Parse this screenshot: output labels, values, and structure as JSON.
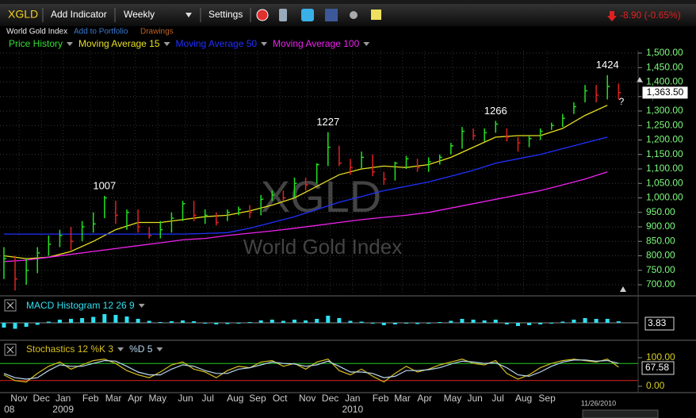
{
  "toolbar": {
    "symbol": "XGLD",
    "add_indicator": "Add Indicator",
    "interval": "Weekly",
    "settings": "Settings",
    "change": "-8.90 (-0.65%)"
  },
  "subbar": {
    "name": "World Gold Index",
    "add_to_portfolio": "Add to Portfolio",
    "drawings": "Drawings"
  },
  "chart_data": [
    {
      "type": "ohlc",
      "watermark": {
        "symbol": "XGLD",
        "name": "World Gold Index"
      },
      "xlim": [
        -0.7,
        113.5
      ],
      "ylim": [
        700,
        1500
      ],
      "yticks": [
        {
          "value": 1500,
          "label": "1,500.00"
        },
        {
          "value": 1450,
          "label": "1,450.00"
        },
        {
          "value": 1400,
          "label": "1,400.00"
        },
        {
          "value": 1350,
          "label": "1,350.00"
        },
        {
          "value": 1300,
          "label": "1,300.00"
        },
        {
          "value": 1250,
          "label": "1,250.00"
        },
        {
          "value": 1200,
          "label": "1,200.00"
        },
        {
          "value": 1150,
          "label": "1,150.00"
        },
        {
          "value": 1100,
          "label": "1,100.00"
        },
        {
          "value": 1050,
          "label": "1,050.00"
        },
        {
          "value": 1000,
          "label": "1,000.00"
        },
        {
          "value": 950,
          "label": "950.00"
        },
        {
          "value": 900,
          "label": "900.00"
        },
        {
          "value": 850,
          "label": "850.00"
        },
        {
          "value": 800,
          "label": "800.00"
        },
        {
          "value": 750,
          "label": "750.00"
        },
        {
          "value": 700,
          "label": "700.00"
        }
      ],
      "grid": true,
      "xticks": [
        {
          "value": 2.7,
          "label": "Nov"
        },
        {
          "value": 6.7,
          "label": "Dec"
        },
        {
          "value": 10.6,
          "label": "Jan"
        },
        {
          "value": 15.5,
          "label": "Feb"
        },
        {
          "value": 19.6,
          "label": "Mar"
        },
        {
          "value": 23.5,
          "label": "Apr"
        },
        {
          "value": 27.5,
          "label": "May"
        },
        {
          "value": 32.5,
          "label": "Jun"
        },
        {
          "value": 36.5,
          "label": "Jul"
        },
        {
          "value": 41.4,
          "label": "Aug"
        },
        {
          "value": 45.4,
          "label": "Sep"
        },
        {
          "value": 49.4,
          "label": "Oct"
        },
        {
          "value": 54.3,
          "label": "Nov"
        },
        {
          "value": 58.4,
          "label": "Dec"
        },
        {
          "value": 62.4,
          "label": "Jan"
        },
        {
          "value": 67.4,
          "label": "Feb"
        },
        {
          "value": 71.3,
          "label": "Mar"
        },
        {
          "value": 75.3,
          "label": "Apr"
        },
        {
          "value": 80.3,
          "label": "May"
        },
        {
          "value": 84.3,
          "label": "Jun"
        },
        {
          "value": 88.4,
          "label": "Jul"
        },
        {
          "value": 93.0,
          "label": "Aug"
        },
        {
          "value": 97.2,
          "label": "Sep"
        }
      ],
      "year_ticks": [
        {
          "value": 0.4,
          "label": "08"
        },
        {
          "value": 10.6,
          "label": "2009"
        },
        {
          "value": 62.4,
          "label": "2010"
        }
      ],
      "date_label": "11/26/2010",
      "last_price_label": "1,363.50",
      "question_mark": "?",
      "price": {
        "name": "Price History",
        "name_color": "#33dd33",
        "up_color": "#22e022",
        "down_color": "#e02222",
        "x": [
          0,
          2,
          4,
          6,
          8,
          10,
          12,
          14,
          16,
          18,
          20,
          22,
          24,
          26,
          28,
          30,
          32,
          34,
          36,
          38,
          40,
          42,
          44,
          46,
          48,
          50,
          52,
          54,
          56,
          58,
          60,
          62,
          64,
          66,
          68,
          70,
          72,
          74,
          76,
          78,
          80,
          82,
          84,
          86,
          88,
          90,
          92,
          94,
          96,
          98,
          100,
          102,
          104,
          106,
          108,
          110
        ],
        "high": [
          830,
          800,
          790,
          830,
          870,
          890,
          900,
          920,
          950,
          1007,
          990,
          960,
          960,
          900,
          920,
          950,
          990,
          990,
          960,
          950,
          960,
          970,
          975,
          1010,
          1025,
          1025,
          1070,
          1070,
          1120,
          1227,
          1180,
          1135,
          1160,
          1150,
          1090,
          1125,
          1145,
          1135,
          1140,
          1150,
          1190,
          1245,
          1240,
          1240,
          1266,
          1240,
          1210,
          1215,
          1240,
          1260,
          1290,
          1330,
          1390,
          1390,
          1424,
          1395
        ],
        "low": [
          720,
          680,
          700,
          740,
          800,
          830,
          820,
          850,
          880,
          930,
          910,
          890,
          880,
          860,
          860,
          880,
          920,
          920,
          910,
          905,
          920,
          940,
          930,
          940,
          990,
          990,
          1000,
          1025,
          1050,
          1110,
          1110,
          1080,
          1100,
          1075,
          1045,
          1060,
          1100,
          1090,
          1090,
          1115,
          1150,
          1170,
          1200,
          1195,
          1225,
          1195,
          1160,
          1175,
          1200,
          1235,
          1245,
          1290,
          1330,
          1330,
          1340,
          1340
        ],
        "close": [
          790,
          720,
          750,
          810,
          840,
          870,
          850,
          900,
          910,
          1000,
          940,
          950,
          900,
          870,
          890,
          930,
          980,
          940,
          940,
          915,
          950,
          960,
          950,
          995,
          1010,
          1000,
          1050,
          1045,
          1115,
          1175,
          1120,
          1105,
          1140,
          1090,
          1065,
          1120,
          1135,
          1105,
          1125,
          1140,
          1180,
          1230,
          1215,
          1225,
          1255,
          1210,
          1190,
          1205,
          1230,
          1250,
          1275,
          1315,
          1370,
          1355,
          1385,
          1363.5
        ]
      },
      "series": [
        {
          "name": "Moving Average 15",
          "color": "#e8e020",
          "x": [
            0,
            4,
            8,
            12,
            16,
            20,
            24,
            28,
            32,
            36,
            40,
            44,
            48,
            52,
            56,
            60,
            64,
            68,
            72,
            76,
            80,
            84,
            88,
            92,
            96,
            100,
            104,
            108
          ],
          "values": [
            800,
            790,
            795,
            815,
            850,
            890,
            915,
            915,
            925,
            935,
            940,
            955,
            975,
            1000,
            1040,
            1080,
            1100,
            1110,
            1105,
            1115,
            1140,
            1175,
            1210,
            1215,
            1215,
            1240,
            1285,
            1320
          ]
        },
        {
          "name": "Moving Average 50",
          "color": "#2030ff",
          "x": [
            0,
            4,
            8,
            12,
            16,
            20,
            24,
            28,
            32,
            36,
            40,
            44,
            48,
            52,
            56,
            60,
            64,
            68,
            72,
            76,
            80,
            84,
            88,
            92,
            96,
            100,
            104,
            108
          ],
          "values": [
            875,
            875,
            875,
            875,
            875,
            875,
            875,
            875,
            875,
            877,
            880,
            895,
            915,
            935,
            960,
            985,
            1005,
            1025,
            1040,
            1055,
            1075,
            1095,
            1120,
            1135,
            1150,
            1170,
            1190,
            1210
          ]
        },
        {
          "name": "Moving Average 100",
          "color": "#ee22ee",
          "x": [
            0,
            4,
            8,
            12,
            16,
            20,
            24,
            28,
            32,
            36,
            40,
            44,
            48,
            52,
            56,
            60,
            64,
            68,
            72,
            76,
            80,
            84,
            88,
            92,
            96,
            100,
            104,
            108
          ],
          "values": [
            780,
            785,
            795,
            805,
            815,
            825,
            835,
            845,
            855,
            860,
            870,
            878,
            886,
            895,
            905,
            915,
            925,
            933,
            940,
            950,
            965,
            980,
            995,
            1010,
            1025,
            1045,
            1065,
            1090
          ]
        }
      ],
      "annotations": [
        {
          "x": 18,
          "value": 1007
        },
        {
          "x": 58,
          "value": 1227
        },
        {
          "x": 88,
          "value": 1266
        },
        {
          "x": 108,
          "value": 1424
        }
      ]
    },
    {
      "type": "bar",
      "title": "MACD Histogram 12 26 9",
      "color": "#30e0f0",
      "xlim": [
        -0.7,
        113.5
      ],
      "ylim": [
        -30,
        30
      ],
      "x": [
        0,
        2,
        4,
        6,
        8,
        10,
        12,
        14,
        16,
        18,
        20,
        22,
        24,
        26,
        28,
        30,
        32,
        34,
        36,
        38,
        40,
        42,
        44,
        46,
        48,
        50,
        52,
        54,
        56,
        58,
        60,
        62,
        64,
        66,
        68,
        70,
        72,
        74,
        76,
        78,
        80,
        82,
        84,
        86,
        88,
        90,
        92,
        94,
        96,
        98,
        100,
        102,
        104,
        106,
        108,
        110
      ],
      "values": [
        -12,
        -15,
        -10,
        -5,
        3,
        8,
        10,
        12,
        15,
        22,
        20,
        16,
        10,
        5,
        2,
        4,
        6,
        4,
        -2,
        -4,
        -3,
        -2,
        2,
        6,
        8,
        5,
        8,
        6,
        10,
        18,
        12,
        5,
        3,
        -2,
        -6,
        -4,
        -2,
        -3,
        -2,
        2,
        5,
        10,
        8,
        6,
        8,
        -4,
        -8,
        -6,
        -4,
        -2,
        3,
        8,
        12,
        10,
        10,
        3.83
      ]
    },
    {
      "type": "line",
      "xlim": [
        -0.7,
        113.5
      ],
      "ylim": [
        0,
        100
      ],
      "yticks": [
        {
          "value": 100,
          "label": "100.00"
        },
        {
          "value": 0,
          "label": "0.00"
        }
      ],
      "levels": [
        {
          "value": 80,
          "color": "#22cc22"
        },
        {
          "value": 20,
          "color": "#dd2222"
        }
      ],
      "x": [
        0,
        2,
        4,
        6,
        8,
        10,
        12,
        14,
        16,
        18,
        20,
        22,
        24,
        26,
        28,
        30,
        32,
        34,
        36,
        38,
        40,
        42,
        44,
        46,
        48,
        50,
        52,
        54,
        56,
        58,
        60,
        62,
        64,
        66,
        68,
        70,
        72,
        74,
        76,
        78,
        80,
        82,
        84,
        86,
        88,
        90,
        92,
        94,
        96,
        98,
        100,
        102,
        104,
        106,
        108,
        110
      ],
      "series": [
        {
          "name": "Stochastics 12 %K 3",
          "color": "#d8c020",
          "values": [
            40,
            20,
            15,
            45,
            70,
            85,
            60,
            75,
            90,
            95,
            80,
            55,
            40,
            30,
            50,
            75,
            85,
            60,
            50,
            30,
            55,
            70,
            65,
            85,
            90,
            70,
            80,
            60,
            85,
            95,
            55,
            40,
            60,
            35,
            15,
            45,
            70,
            50,
            60,
            75,
            85,
            95,
            80,
            75,
            90,
            45,
            25,
            40,
            65,
            80,
            90,
            95,
            90,
            85,
            95,
            67.58
          ]
        },
        {
          "name": "%D 5",
          "color": "#b8d8f0",
          "values": [
            45,
            30,
            25,
            30,
            55,
            75,
            70,
            70,
            80,
            90,
            88,
            70,
            50,
            40,
            40,
            60,
            75,
            70,
            55,
            45,
            45,
            60,
            65,
            75,
            85,
            80,
            78,
            70,
            75,
            88,
            70,
            50,
            50,
            45,
            30,
            35,
            55,
            55,
            58,
            65,
            78,
            88,
            85,
            80,
            82,
            65,
            40,
            35,
            50,
            70,
            85,
            92,
            92,
            88,
            90,
            80
          ]
        }
      ]
    }
  ]
}
